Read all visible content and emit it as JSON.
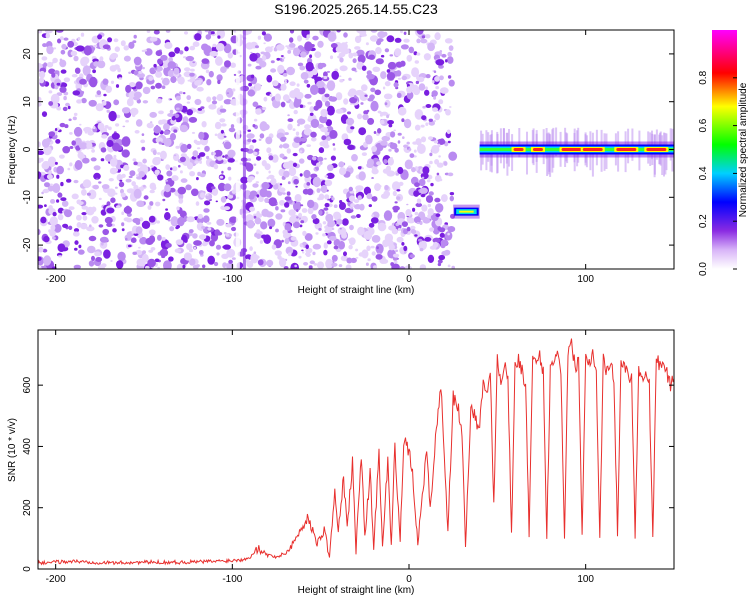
{
  "title": "S196.2025.265.14.55.C23",
  "colors": {
    "noise": "#8a2be2",
    "snr_line": "#e8302e",
    "axis": "#000000",
    "background": "#ffffff"
  },
  "chart_data": [
    {
      "type": "heatmap",
      "title": "S196.2025.265.14.55.C23",
      "xlabel": "Height of straight line (km)",
      "ylabel": "Frequency (Hz)",
      "xlim": [
        -210,
        150
      ],
      "ylim": [
        -25,
        25
      ],
      "x_ticks": [
        -200,
        -100,
        0,
        100
      ],
      "y_ticks": [
        -20,
        -10,
        0,
        10,
        20
      ],
      "colorbar": {
        "label": "Normalized spectral amplitude",
        "range": [
          0,
          1
        ],
        "ticks": [
          0.0,
          0.2,
          0.4,
          0.6,
          0.8
        ],
        "tick_labels": [
          "0.0",
          "0.2",
          "0.4",
          "0.6",
          "0.8"
        ],
        "colormap": [
          "#ffffff",
          "#8a2be2",
          "#0000ff",
          "#00ffff",
          "#00ff00",
          "#ffff00",
          "#ff0000",
          "#ff00ff"
        ]
      },
      "features": [
        {
          "name": "noise field",
          "x_range": [
            -210,
            25
          ],
          "freq_range": [
            -25,
            25
          ],
          "amplitude": "0.0-0.2"
        },
        {
          "name": "tone segment",
          "x_range": [
            25,
            40
          ],
          "freq_hz": -13,
          "amplitude": 0.4
        },
        {
          "name": "tone band",
          "x_range": [
            40,
            150
          ],
          "freq_hz": 0,
          "amplitude": 0.5
        },
        {
          "name": "peak",
          "x": 62,
          "freq_hz": 0,
          "amplitude": 0.8
        },
        {
          "name": "peak",
          "x": 73,
          "freq_hz": 0,
          "amplitude": 0.7
        },
        {
          "name": "peak",
          "x": 92,
          "freq_hz": 0,
          "amplitude": 0.9
        },
        {
          "name": "peak",
          "x": 104,
          "freq_hz": 0,
          "amplitude": 0.9
        },
        {
          "name": "peak",
          "x": 123,
          "freq_hz": 0,
          "amplitude": 0.9
        },
        {
          "name": "peak",
          "x": 140,
          "freq_hz": 0,
          "amplitude": 0.9
        }
      ]
    },
    {
      "type": "line",
      "xlabel": "Height of straight line (km)",
      "ylabel": "SNR (10 * v/v)",
      "xlim": [
        -210,
        150
      ],
      "ylim": [
        0,
        780
      ],
      "x_ticks": [
        -200,
        -100,
        0,
        100
      ],
      "y_ticks": [
        0,
        200,
        400,
        600
      ],
      "series": [
        {
          "name": "SNR",
          "x": [
            -210,
            -190,
            -170,
            -150,
            -130,
            -110,
            -95,
            -90,
            -85,
            -80,
            -75,
            -70,
            -65,
            -60,
            -57,
            -52,
            -48,
            -45,
            -42,
            -40,
            -37,
            -35,
            -32,
            -30,
            -27,
            -25,
            -22,
            -20,
            -17,
            -15,
            -12,
            -10,
            -8,
            -5,
            -3,
            0,
            2,
            5,
            8,
            10,
            12,
            15,
            18,
            20,
            22,
            25,
            28,
            30,
            32,
            35,
            38,
            40,
            42,
            44,
            46,
            48,
            50,
            52,
            54,
            56,
            58,
            60,
            62,
            64,
            66,
            68,
            70,
            72,
            74,
            76,
            78,
            80,
            82,
            84,
            86,
            88,
            90,
            92,
            94,
            96,
            98,
            100,
            102,
            104,
            106,
            108,
            110,
            112,
            114,
            116,
            118,
            120,
            122,
            124,
            126,
            128,
            130,
            132,
            134,
            136,
            138,
            140,
            142,
            144,
            146,
            148,
            150
          ],
          "values": [
            20,
            25,
            20,
            22,
            22,
            25,
            30,
            40,
            70,
            45,
            40,
            50,
            90,
            140,
            170,
            80,
            130,
            40,
            250,
            120,
            300,
            130,
            350,
            60,
            380,
            100,
            320,
            60,
            390,
            80,
            350,
            70,
            400,
            100,
            420,
            380,
            310,
            80,
            270,
            380,
            200,
            420,
            600,
            380,
            120,
            560,
            520,
            440,
            70,
            540,
            480,
            470,
            600,
            580,
            650,
            200,
            680,
            620,
            670,
            630,
            110,
            660,
            680,
            650,
            600,
            110,
            680,
            660,
            700,
            640,
            110,
            660,
            690,
            700,
            650,
            110,
            700,
            740,
            660,
            680,
            110,
            700,
            680,
            700,
            650,
            110,
            690,
            640,
            680,
            620,
            110,
            680,
            660,
            640,
            620,
            110,
            650,
            620,
            640,
            600,
            110,
            690,
            660,
            680,
            640,
            600,
            620
          ]
        }
      ]
    }
  ]
}
